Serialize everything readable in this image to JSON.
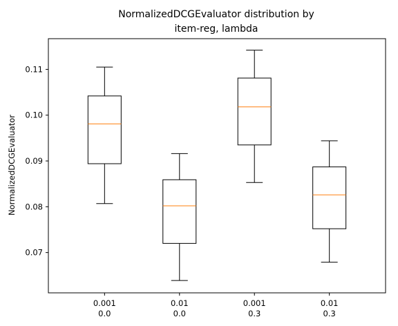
{
  "chart_data": {
    "type": "boxplot",
    "title_lines": [
      "NormalizedDCGEvaluator distribution by",
      "item-reg, lambda"
    ],
    "xlabel": "",
    "ylabel": "NormalizedDCGEvaluator",
    "ylim": [
      0.0612,
      0.1167
    ],
    "yticks": [
      0.07,
      0.08,
      0.09,
      0.1,
      0.11
    ],
    "ytick_labels": [
      "0.07",
      "0.08",
      "0.09",
      "0.10",
      "0.11"
    ],
    "grid": false,
    "categories": [
      {
        "line1": "0.001",
        "line2": "0.0"
      },
      {
        "line1": "0.01",
        "line2": "0.0"
      },
      {
        "line1": "0.001",
        "line2": "0.3"
      },
      {
        "line1": "0.01",
        "line2": "0.3"
      }
    ],
    "boxes": [
      {
        "whisker_low": 0.0807,
        "q1": 0.0894,
        "median": 0.0981,
        "q3": 0.1042,
        "whisker_high": 0.1105
      },
      {
        "whisker_low": 0.0639,
        "q1": 0.072,
        "median": 0.0802,
        "q3": 0.0859,
        "whisker_high": 0.0916
      },
      {
        "whisker_low": 0.0853,
        "q1": 0.0935,
        "median": 0.1018,
        "q3": 0.1081,
        "whisker_high": 0.1142
      },
      {
        "whisker_low": 0.0679,
        "q1": 0.0752,
        "median": 0.0826,
        "q3": 0.0887,
        "whisker_high": 0.0944
      }
    ],
    "colors": {
      "box": "#000000",
      "median": "#ff7f0e",
      "axes": "#000000"
    }
  }
}
